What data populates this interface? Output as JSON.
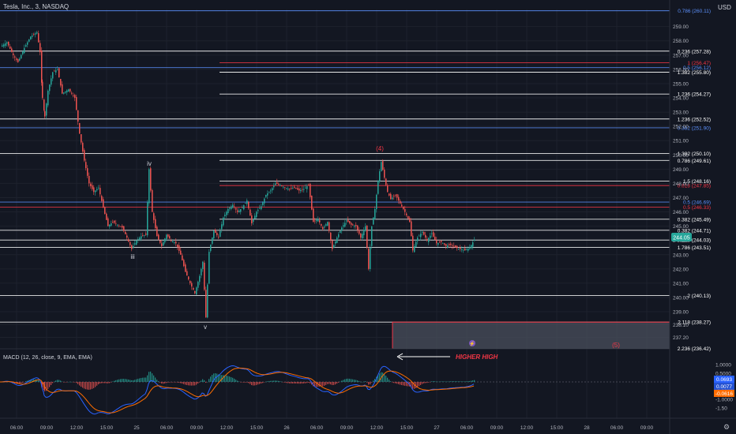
{
  "header": {
    "symbol": "Tesla, Inc., 3, NASDAQ",
    "currency": "USD"
  },
  "price_axis": {
    "ticks": [
      "259.00",
      "258.00",
      "257.00",
      "256.00",
      "255.00",
      "254.00",
      "253.00",
      "252.00",
      "251.00",
      "250.00",
      "249.00",
      "248.00",
      "247.00",
      "246.00",
      "245.00",
      "244.00",
      "243.00",
      "242.00",
      "241.00",
      "240.00",
      "239.00",
      "238.10",
      "237.20"
    ],
    "last_price": "244.05"
  },
  "time_axis": {
    "ticks": [
      "06:00",
      "09:00",
      "12:00",
      "15:00",
      "25",
      "06:00",
      "09:00",
      "12:00",
      "15:00",
      "26",
      "06:00",
      "09:00",
      "12:00",
      "15:00",
      "27",
      "06:00",
      "09:00",
      "12:00",
      "15:00",
      "28",
      "06:00",
      "09:00"
    ]
  },
  "fib_levels": [
    {
      "label": "0.786 (260.11)",
      "color": "#5b8ff9"
    },
    {
      "label": "0.236 (257.28)",
      "color": "#ffffff"
    },
    {
      "label": "1 (256.47)",
      "color": "#f23645"
    },
    {
      "label": "0.5 (256.12)",
      "color": "#5b8ff9"
    },
    {
      "label": "1.382 (255.80)",
      "color": "#ffffff"
    },
    {
      "label": "1.236 (254.27)",
      "color": "#ffffff"
    },
    {
      "label": "1.236 (252.52)",
      "color": "#ffffff"
    },
    {
      "label": "0.382 (251.90)",
      "color": "#5b8ff9"
    },
    {
      "label": "1.382 (250.10)",
      "color": "#ffffff"
    },
    {
      "label": "0.786 (249.61)",
      "color": "#ffffff"
    },
    {
      "label": "1.5 (248.16)",
      "color": "#ffffff"
    },
    {
      "label": "0.618 (247.85)",
      "color": "#f23645"
    },
    {
      "label": "0.5 (246.69)",
      "color": "#5b8ff9"
    },
    {
      "label": "0.5 (246.33)",
      "color": "#f23645"
    },
    {
      "label": "0.382 (245.49)",
      "color": "#ffffff"
    },
    {
      "label": "0.382 (244.71)",
      "color": "#ffffff"
    },
    {
      "label": "0.236 (244.03)",
      "color": "#ffffff"
    },
    {
      "label": "1.786 (243.51)",
      "color": "#ffffff"
    },
    {
      "label": "2 (240.13)",
      "color": "#ffffff"
    },
    {
      "label": "2.118 (238.27)",
      "color": "#ffffff"
    },
    {
      "label": "2.236 (236.42)",
      "color": "#ffffff"
    }
  ],
  "wave_labels": {
    "iii": "iii",
    "iv": "iv",
    "v": "v",
    "w4": "(4)",
    "w5": "(5)"
  },
  "macd": {
    "title": "MACD (12, 26, close, 9, EMA, EMA)",
    "annotation": "HIGHER HIGH",
    "axis_ticks": [
      "1.0000",
      "0.5000",
      "-0.5000",
      "-1.0000",
      "-1.50"
    ],
    "values": {
      "macd": "0.0693",
      "signal": "0.0077",
      "histogram": "-0.0616"
    }
  },
  "colors": {
    "background": "#131722",
    "up": "#26a69a",
    "down": "#ef5350",
    "fib_white": "#ffffff",
    "fib_blue": "#5b8ff9",
    "fib_red": "#f23645",
    "macd_line": "#2962ff",
    "signal_line": "#ff6d00",
    "zone": "#4a4f5c"
  },
  "chart_data": {
    "type": "candlestick",
    "title": "Tesla, Inc., 3, NASDAQ",
    "y_unit": "USD",
    "ylim": [
      236.4,
      260.2
    ],
    "price_path": [
      [
        0,
        257.6
      ],
      [
        8,
        257.9
      ],
      [
        16,
        257.0
      ],
      [
        22,
        256.5
      ],
      [
        30,
        257.5
      ],
      [
        38,
        258.3
      ],
      [
        46,
        258.6
      ],
      [
        50,
        257.2
      ],
      [
        53,
        254.0
      ],
      [
        56,
        252.7
      ],
      [
        60,
        254.5
      ],
      [
        66,
        255.8
      ],
      [
        72,
        256.0
      ],
      [
        78,
        254.3
      ],
      [
        86,
        254.6
      ],
      [
        94,
        254.0
      ],
      [
        100,
        251.5
      ],
      [
        106,
        249.6
      ],
      [
        112,
        248.0
      ],
      [
        118,
        247.4
      ],
      [
        124,
        247.7
      ],
      [
        130,
        246.3
      ],
      [
        136,
        245.0
      ],
      [
        142,
        245.3
      ],
      [
        148,
        245.1
      ],
      [
        154,
        244.9
      ],
      [
        160,
        244.2
      ],
      [
        166,
        243.4
      ],
      [
        172,
        244.0
      ],
      [
        178,
        244.3
      ],
      [
        184,
        244.4
      ],
      [
        188,
        249.0
      ],
      [
        192,
        246.0
      ],
      [
        198,
        244.3
      ],
      [
        204,
        243.6
      ],
      [
        210,
        244.4
      ],
      [
        216,
        244.0
      ],
      [
        222,
        243.8
      ],
      [
        228,
        243.0
      ],
      [
        234,
        241.8
      ],
      [
        240,
        241.0
      ],
      [
        246,
        240.3
      ],
      [
        252,
        241.5
      ],
      [
        256,
        242.5
      ],
      [
        260,
        238.6
      ],
      [
        264,
        243.2
      ],
      [
        270,
        244.7
      ],
      [
        276,
        244.2
      ],
      [
        282,
        245.6
      ],
      [
        288,
        246.2
      ],
      [
        294,
        246.5
      ],
      [
        300,
        246.0
      ],
      [
        306,
        246.3
      ],
      [
        312,
        246.8
      ],
      [
        318,
        245.2
      ],
      [
        324,
        246.0
      ],
      [
        330,
        246.4
      ],
      [
        336,
        247.2
      ],
      [
        342,
        247.5
      ],
      [
        348,
        248.0
      ],
      [
        354,
        247.9
      ],
      [
        360,
        247.7
      ],
      [
        366,
        247.6
      ],
      [
        372,
        247.7
      ],
      [
        378,
        247.5
      ],
      [
        384,
        247.6
      ],
      [
        390,
        247.9
      ],
      [
        396,
        245.3
      ],
      [
        402,
        245.5
      ],
      [
        408,
        244.8
      ],
      [
        414,
        245.3
      ],
      [
        420,
        243.4
      ],
      [
        426,
        244.2
      ],
      [
        432,
        244.9
      ],
      [
        438,
        245.4
      ],
      [
        444,
        245.1
      ],
      [
        450,
        245.0
      ],
      [
        456,
        244.2
      ],
      [
        462,
        245.0
      ],
      [
        466,
        242.0
      ],
      [
        470,
        245.0
      ],
      [
        474,
        246.2
      ],
      [
        478,
        248.2
      ],
      [
        482,
        249.5
      ],
      [
        486,
        248.4
      ],
      [
        490,
        247.4
      ],
      [
        494,
        246.9
      ],
      [
        500,
        247.2
      ],
      [
        506,
        246.6
      ],
      [
        512,
        246.0
      ],
      [
        518,
        245.3
      ],
      [
        522,
        243.3
      ],
      [
        528,
        244.2
      ],
      [
        534,
        244.6
      ],
      [
        540,
        244.0
      ],
      [
        546,
        244.5
      ],
      [
        552,
        243.8
      ],
      [
        558,
        243.9
      ],
      [
        564,
        243.6
      ],
      [
        570,
        243.7
      ],
      [
        576,
        243.5
      ],
      [
        582,
        243.4
      ],
      [
        588,
        243.3
      ],
      [
        594,
        243.5
      ],
      [
        600,
        244.05
      ]
    ]
  }
}
